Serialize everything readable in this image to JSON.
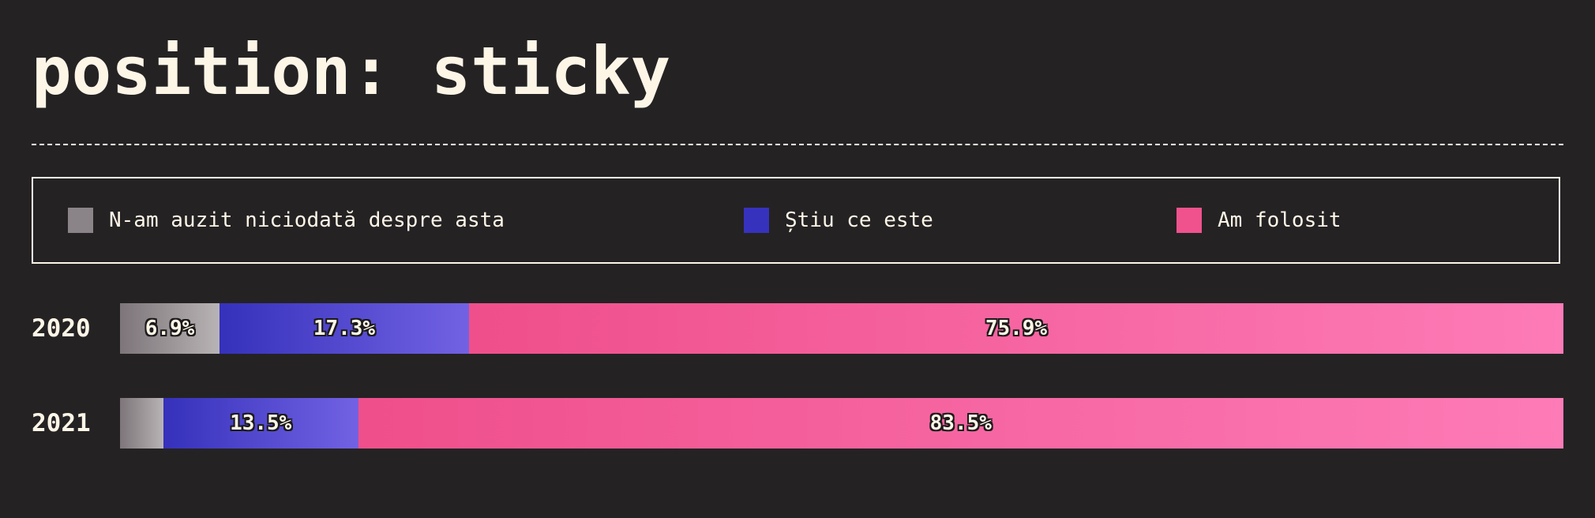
{
  "title": "position: sticky",
  "legend": [
    {
      "label": "N-am auzit niciodată despre asta",
      "color": "#8a8387"
    },
    {
      "label": "Știu ce este",
      "color": "#3732be"
    },
    {
      "label": "Am folosit",
      "color": "#f0528d"
    }
  ],
  "chart_data": {
    "type": "bar",
    "orientation": "horizontal",
    "stacked": true,
    "normalized": true,
    "title": "position: sticky",
    "categories": [
      "2020",
      "2021"
    ],
    "series": [
      {
        "name": "N-am auzit niciodată despre asta",
        "values": [
          6.9,
          3.0
        ],
        "labels": [
          "6.9%",
          ""
        ]
      },
      {
        "name": "Știu ce este",
        "values": [
          17.3,
          13.5
        ],
        "labels": [
          "17.3%",
          "13.5%"
        ]
      },
      {
        "name": "Am folosit",
        "values": [
          75.9,
          83.5
        ],
        "labels": [
          "75.9%",
          "83.5%"
        ]
      }
    ],
    "legend_position": "top"
  }
}
